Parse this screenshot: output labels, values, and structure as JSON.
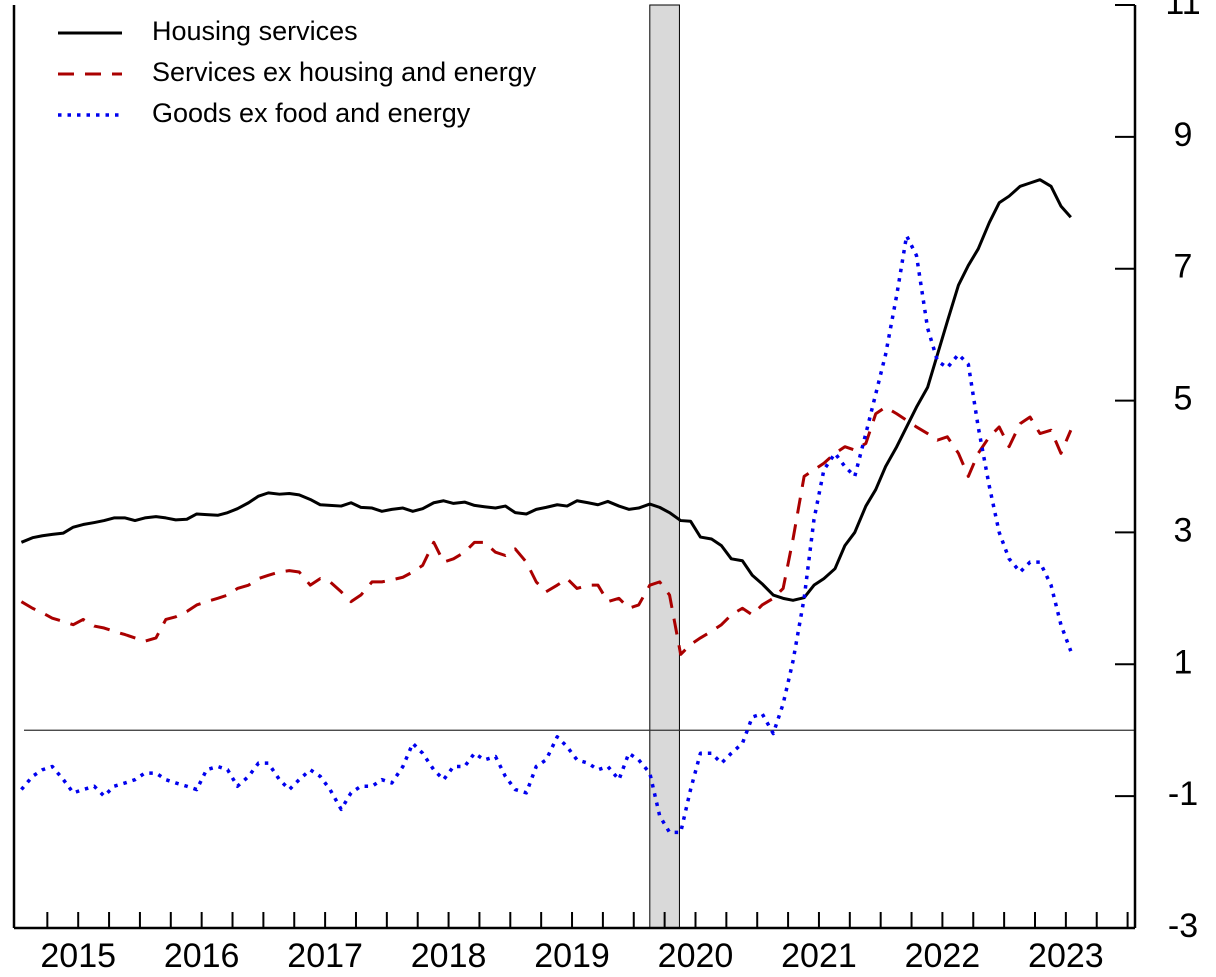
{
  "chart_data": {
    "type": "line",
    "x": [
      2015.04,
      2015.13,
      2015.21,
      2015.29,
      2015.38,
      2015.46,
      2015.54,
      2015.63,
      2015.71,
      2015.79,
      2015.88,
      2015.96,
      2016.04,
      2016.13,
      2016.21,
      2016.29,
      2016.38,
      2016.46,
      2016.54,
      2016.63,
      2016.71,
      2016.79,
      2016.88,
      2016.96,
      2017.04,
      2017.13,
      2017.21,
      2017.29,
      2017.38,
      2017.46,
      2017.54,
      2017.63,
      2017.71,
      2017.79,
      2017.88,
      2017.96,
      2018.04,
      2018.13,
      2018.21,
      2018.29,
      2018.38,
      2018.46,
      2018.54,
      2018.63,
      2018.71,
      2018.79,
      2018.88,
      2018.96,
      2019.04,
      2019.13,
      2019.21,
      2019.29,
      2019.38,
      2019.46,
      2019.54,
      2019.63,
      2019.71,
      2019.79,
      2019.88,
      2019.96,
      2020.04,
      2020.13,
      2020.21,
      2020.29,
      2020.38,
      2020.46,
      2020.54,
      2020.63,
      2020.71,
      2020.79,
      2020.88,
      2020.96,
      2021.04,
      2021.13,
      2021.21,
      2021.29,
      2021.38,
      2021.46,
      2021.54,
      2021.63,
      2021.71,
      2021.79,
      2021.88,
      2021.96,
      2022.04,
      2022.13,
      2022.21,
      2022.29,
      2022.38,
      2022.46,
      2022.54,
      2022.63,
      2022.71,
      2022.79,
      2022.88,
      2022.96,
      2023.04,
      2023.13,
      2023.21,
      2023.29,
      2023.38,
      2023.46,
      2023.54
    ],
    "series": [
      {
        "name": "Housing services",
        "color": "#000000",
        "dash": "solid",
        "values": [
          2.85,
          2.92,
          2.95,
          2.97,
          2.99,
          3.08,
          3.12,
          3.15,
          3.18,
          3.22,
          3.22,
          3.18,
          3.22,
          3.24,
          3.22,
          3.19,
          3.2,
          3.28,
          3.27,
          3.26,
          3.3,
          3.36,
          3.45,
          3.55,
          3.6,
          3.58,
          3.59,
          3.57,
          3.5,
          3.42,
          3.41,
          3.4,
          3.45,
          3.38,
          3.37,
          3.32,
          3.35,
          3.37,
          3.32,
          3.36,
          3.45,
          3.48,
          3.44,
          3.46,
          3.41,
          3.39,
          3.37,
          3.4,
          3.3,
          3.28,
          3.35,
          3.38,
          3.42,
          3.4,
          3.48,
          3.45,
          3.42,
          3.47,
          3.4,
          3.35,
          3.37,
          3.43,
          3.38,
          3.3,
          3.18,
          3.17,
          2.93,
          2.9,
          2.8,
          2.6,
          2.57,
          2.35,
          2.22,
          2.05,
          2.0,
          1.97,
          2.01,
          2.2,
          2.3,
          2.45,
          2.8,
          3.0,
          3.4,
          3.65,
          4.0,
          4.3,
          4.6,
          4.9,
          5.2,
          5.7,
          6.2,
          6.75,
          7.05,
          7.3,
          7.7,
          8.0,
          8.1,
          8.25,
          8.3,
          8.35,
          8.25,
          7.95,
          7.78
        ]
      },
      {
        "name": "Services ex housing and energy",
        "color": "#aa0000",
        "dash": "dashed",
        "values": [
          1.95,
          1.85,
          1.78,
          1.7,
          1.65,
          1.6,
          1.68,
          1.58,
          1.55,
          1.5,
          1.45,
          1.4,
          1.35,
          1.4,
          1.68,
          1.72,
          1.8,
          1.9,
          1.95,
          2.0,
          2.05,
          2.15,
          2.2,
          2.3,
          2.35,
          2.4,
          2.42,
          2.4,
          2.2,
          2.3,
          2.25,
          2.1,
          1.95,
          2.05,
          2.25,
          2.25,
          2.28,
          2.32,
          2.4,
          2.5,
          2.85,
          2.55,
          2.6,
          2.7,
          2.85,
          2.85,
          2.7,
          2.65,
          2.75,
          2.55,
          2.25,
          2.1,
          2.2,
          2.3,
          2.15,
          2.2,
          2.2,
          1.95,
          2.0,
          1.85,
          1.9,
          2.2,
          2.25,
          2.05,
          1.15,
          1.3,
          1.4,
          1.5,
          1.6,
          1.75,
          1.85,
          1.75,
          1.9,
          2.0,
          2.15,
          2.9,
          3.85,
          3.95,
          4.05,
          4.2,
          4.3,
          4.25,
          4.35,
          4.8,
          4.9,
          4.8,
          4.7,
          4.6,
          4.5,
          4.4,
          4.45,
          4.2,
          3.85,
          4.2,
          4.45,
          4.6,
          4.3,
          4.65,
          4.75,
          4.5,
          4.55,
          4.2,
          4.55
        ]
      },
      {
        "name": "Goods ex food and energy",
        "color": "#0000ee",
        "dash": "dotted",
        "values": [
          -0.9,
          -0.7,
          -0.6,
          -0.55,
          -0.75,
          -0.95,
          -0.9,
          -0.85,
          -1.0,
          -0.85,
          -0.8,
          -0.75,
          -0.65,
          -0.65,
          -0.75,
          -0.8,
          -0.85,
          -0.9,
          -0.6,
          -0.55,
          -0.6,
          -0.85,
          -0.7,
          -0.5,
          -0.5,
          -0.75,
          -0.9,
          -0.75,
          -0.6,
          -0.7,
          -0.9,
          -1.2,
          -0.95,
          -0.85,
          -0.85,
          -0.75,
          -0.8,
          -0.55,
          -0.2,
          -0.35,
          -0.6,
          -0.75,
          -0.55,
          -0.55,
          -0.35,
          -0.45,
          -0.4,
          -0.7,
          -0.9,
          -0.95,
          -0.55,
          -0.45,
          -0.1,
          -0.25,
          -0.45,
          -0.5,
          -0.6,
          -0.55,
          -0.75,
          -0.35,
          -0.45,
          -0.65,
          -1.3,
          -1.55,
          -1.55,
          -0.9,
          -0.35,
          -0.35,
          -0.5,
          -0.35,
          -0.2,
          0.2,
          0.25,
          -0.05,
          0.4,
          1.05,
          2.0,
          3.2,
          3.95,
          4.2,
          4.0,
          3.85,
          4.5,
          5.1,
          5.7,
          6.6,
          7.5,
          7.2,
          6.1,
          5.6,
          5.5,
          5.7,
          5.55,
          4.6,
          3.7,
          3.0,
          2.6,
          2.4,
          2.55,
          2.55,
          2.2,
          1.6,
          1.2
        ]
      }
    ],
    "xlim": [
      2014.98,
      2024.06
    ],
    "xticks": [
      {
        "value": 2015.5,
        "label": "2015"
      },
      {
        "value": 2016.5,
        "label": "2016"
      },
      {
        "value": 2017.5,
        "label": "2017"
      },
      {
        "value": 2018.5,
        "label": "2018"
      },
      {
        "value": 2019.5,
        "label": "2019"
      },
      {
        "value": 2020.5,
        "label": "2020"
      },
      {
        "value": 2021.5,
        "label": "2021"
      },
      {
        "value": 2022.5,
        "label": "2022"
      },
      {
        "value": 2023.5,
        "label": "2023"
      }
    ],
    "xminorticks": [
      2015.25,
      2015.5,
      2015.75,
      2016,
      2016.25,
      2016.5,
      2016.75,
      2017,
      2017.25,
      2017.5,
      2017.75,
      2018,
      2018.25,
      2018.5,
      2018.75,
      2019,
      2019.25,
      2019.5,
      2019.75,
      2020,
      2020.25,
      2020.5,
      2020.75,
      2021,
      2021.25,
      2021.5,
      2021.75,
      2022,
      2022.25,
      2022.5,
      2022.75,
      2023,
      2023.25,
      2023.5,
      2023.75,
      2024
    ],
    "ylim": [
      -3,
      11
    ],
    "yticks": [
      -3,
      -1,
      1,
      3,
      5,
      7,
      9,
      11
    ],
    "yaxis_side": "right",
    "hline": 0,
    "recession": {
      "start": 2020.13,
      "end": 2020.37
    },
    "legend": "upper left"
  }
}
